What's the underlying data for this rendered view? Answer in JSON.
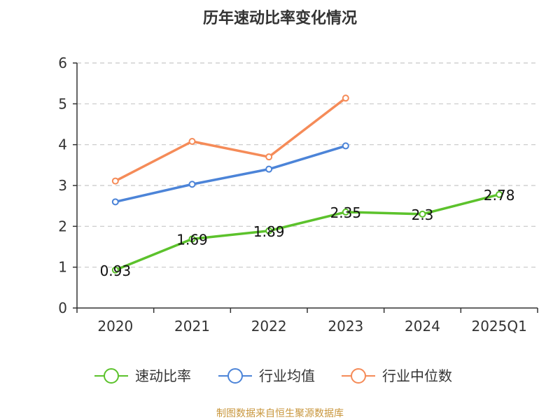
{
  "chart_data": {
    "type": "line",
    "title": "历年速动比率变化情况",
    "categories": [
      "2020",
      "2021",
      "2022",
      "2023",
      "2024",
      "2025Q1"
    ],
    "ylim": [
      0,
      6
    ],
    "yticks": [
      0,
      1,
      2,
      3,
      4,
      5,
      6
    ],
    "grid": true,
    "legend_position": "bottom",
    "series": [
      {
        "name": "速动比率",
        "color": "#5cc22c",
        "values": [
          0.93,
          1.69,
          1.89,
          2.35,
          2.3,
          2.78
        ],
        "labels": [
          "0.93",
          "1.69",
          "1.89",
          "2.35",
          "2.3",
          "2.78"
        ]
      },
      {
        "name": "行业均值",
        "color": "#4c84d8",
        "values": [
          2.6,
          3.03,
          3.4,
          3.97,
          null,
          null
        ]
      },
      {
        "name": "行业中位数",
        "color": "#f58b58",
        "values": [
          3.11,
          4.08,
          3.7,
          5.14,
          null,
          null
        ]
      }
    ]
  },
  "source": {
    "text": "制图数据来自恒生聚源数据库",
    "color": "#c8963c"
  }
}
